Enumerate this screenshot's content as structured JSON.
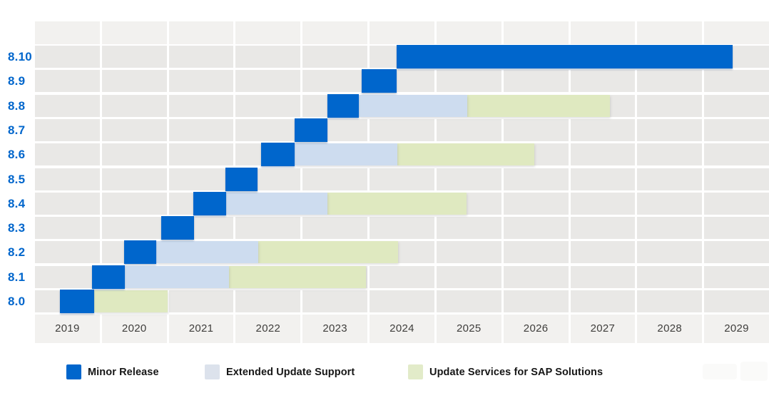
{
  "chart_data": {
    "type": "bar",
    "subtype": "gantt-release-lifecycle",
    "orientation": "horizontal",
    "title": "",
    "xlabel": "",
    "ylabel": "",
    "x_axis": {
      "min": 2019,
      "max": 2030,
      "tick_labels": [
        "2019",
        "2020",
        "2021",
        "2022",
        "2023",
        "2024",
        "2025",
        "2026",
        "2027",
        "2028",
        "2029"
      ],
      "grid": "shaded year columns with row stripes"
    },
    "legend_position": "bottom",
    "legend": [
      {
        "key": "minor",
        "label": "Minor Release",
        "color": "#0066cc"
      },
      {
        "key": "eus",
        "label": "Extended Update Support",
        "color": "#cddcef"
      },
      {
        "key": "sap",
        "label": "Update Services for SAP Solutions",
        "color": "#dfe9c0"
      }
    ],
    "rows": [
      {
        "version": "8.10",
        "segments": [
          {
            "type": "minor",
            "start": 2024.42,
            "end": 2029.45
          }
        ]
      },
      {
        "version": "8.9",
        "segments": [
          {
            "type": "minor",
            "start": 2023.9,
            "end": 2024.42
          }
        ]
      },
      {
        "version": "8.8",
        "segments": [
          {
            "type": "minor",
            "start": 2023.38,
            "end": 2023.85
          },
          {
            "type": "eus",
            "start": 2023.85,
            "end": 2025.48
          },
          {
            "type": "sap",
            "start": 2025.48,
            "end": 2027.62
          }
        ]
      },
      {
        "version": "8.7",
        "segments": [
          {
            "type": "minor",
            "start": 2022.89,
            "end": 2023.38
          }
        ]
      },
      {
        "version": "8.6",
        "segments": [
          {
            "type": "minor",
            "start": 2022.39,
            "end": 2022.89
          },
          {
            "type": "eus",
            "start": 2022.89,
            "end": 2024.43
          },
          {
            "type": "sap",
            "start": 2024.43,
            "end": 2026.48
          }
        ]
      },
      {
        "version": "8.5",
        "segments": [
          {
            "type": "minor",
            "start": 2021.85,
            "end": 2022.34
          }
        ]
      },
      {
        "version": "8.4",
        "segments": [
          {
            "type": "minor",
            "start": 2021.37,
            "end": 2021.86
          },
          {
            "type": "eus",
            "start": 2021.86,
            "end": 2023.38
          },
          {
            "type": "sap",
            "start": 2023.38,
            "end": 2025.47
          }
        ]
      },
      {
        "version": "8.3",
        "segments": [
          {
            "type": "minor",
            "start": 2020.89,
            "end": 2021.38
          }
        ]
      },
      {
        "version": "8.2",
        "segments": [
          {
            "type": "minor",
            "start": 2020.34,
            "end": 2020.82
          },
          {
            "type": "eus",
            "start": 2020.82,
            "end": 2022.35
          },
          {
            "type": "sap",
            "start": 2022.35,
            "end": 2024.44
          }
        ]
      },
      {
        "version": "8.1",
        "segments": [
          {
            "type": "minor",
            "start": 2019.86,
            "end": 2020.35
          },
          {
            "type": "eus",
            "start": 2020.35,
            "end": 2021.91
          },
          {
            "type": "sap",
            "start": 2021.91,
            "end": 2023.96
          }
        ]
      },
      {
        "version": "8.0",
        "segments": [
          {
            "type": "minor",
            "start": 2019.37,
            "end": 2019.89
          },
          {
            "type": "sap",
            "start": 2019.89,
            "end": 2020.99
          }
        ]
      }
    ]
  },
  "colors": {
    "minor_release": "#0066cc",
    "extended_update_support": "#cddcef",
    "update_services_sap": "#dfe9c0",
    "row_stripe": "#e9e8e6",
    "column_fill": "#f2f1ef",
    "version_label": "#0066cc",
    "year_label": "#3f3e3c",
    "legend_text": "#161616",
    "background": "#ffffff"
  }
}
